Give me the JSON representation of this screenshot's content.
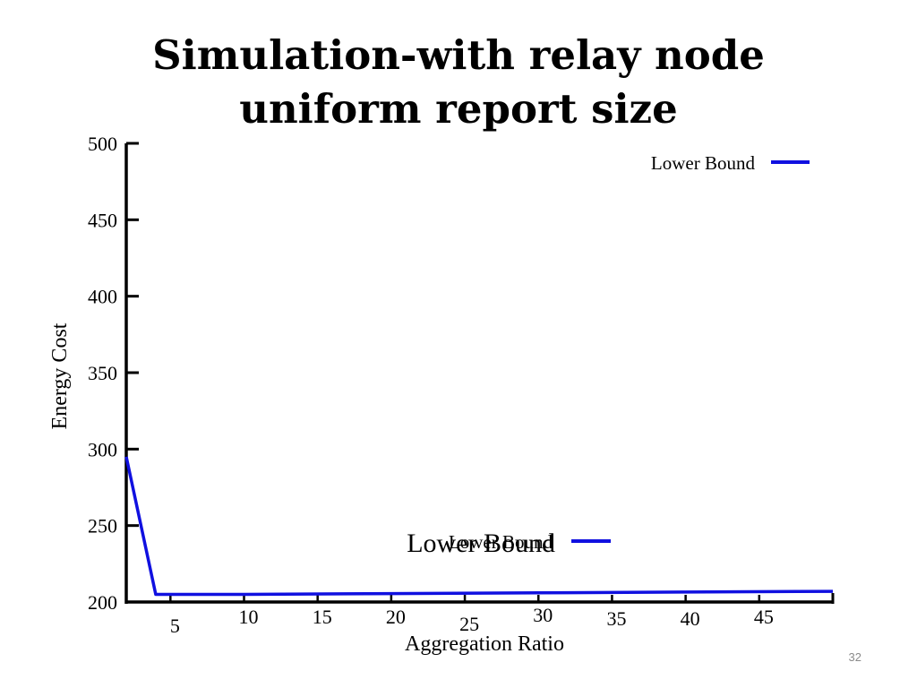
{
  "slide": {
    "title_line1": "Simulation-with relay node",
    "title_line2": "uniform report size",
    "slide_number": "32"
  },
  "colors": {
    "series": "#1010e0",
    "axis": "#000000",
    "text": "#000000"
  },
  "chart_data": {
    "type": "line",
    "xlabel": "Aggregation Ratio",
    "ylabel": "Energy Cost",
    "xlim": [
      2,
      50
    ],
    "ylim": [
      200,
      500
    ],
    "x_ticks": [
      5,
      10,
      15,
      20,
      25,
      30,
      35,
      40,
      45
    ],
    "y_ticks": [
      200,
      250,
      300,
      350,
      400,
      450,
      500
    ],
    "grid": false,
    "legend": {
      "position": "top-right",
      "entries": [
        "Lower Bound"
      ]
    },
    "overlay_legend": {
      "position": "center-bottom",
      "labels": [
        "Lower Bound",
        "Lower Bound"
      ]
    },
    "series": [
      {
        "name": "Lower Bound",
        "x": [
          2,
          4,
          10,
          20,
          30,
          40,
          50
        ],
        "y": [
          295,
          205,
          205,
          205.5,
          206,
          206.5,
          207
        ]
      }
    ]
  }
}
